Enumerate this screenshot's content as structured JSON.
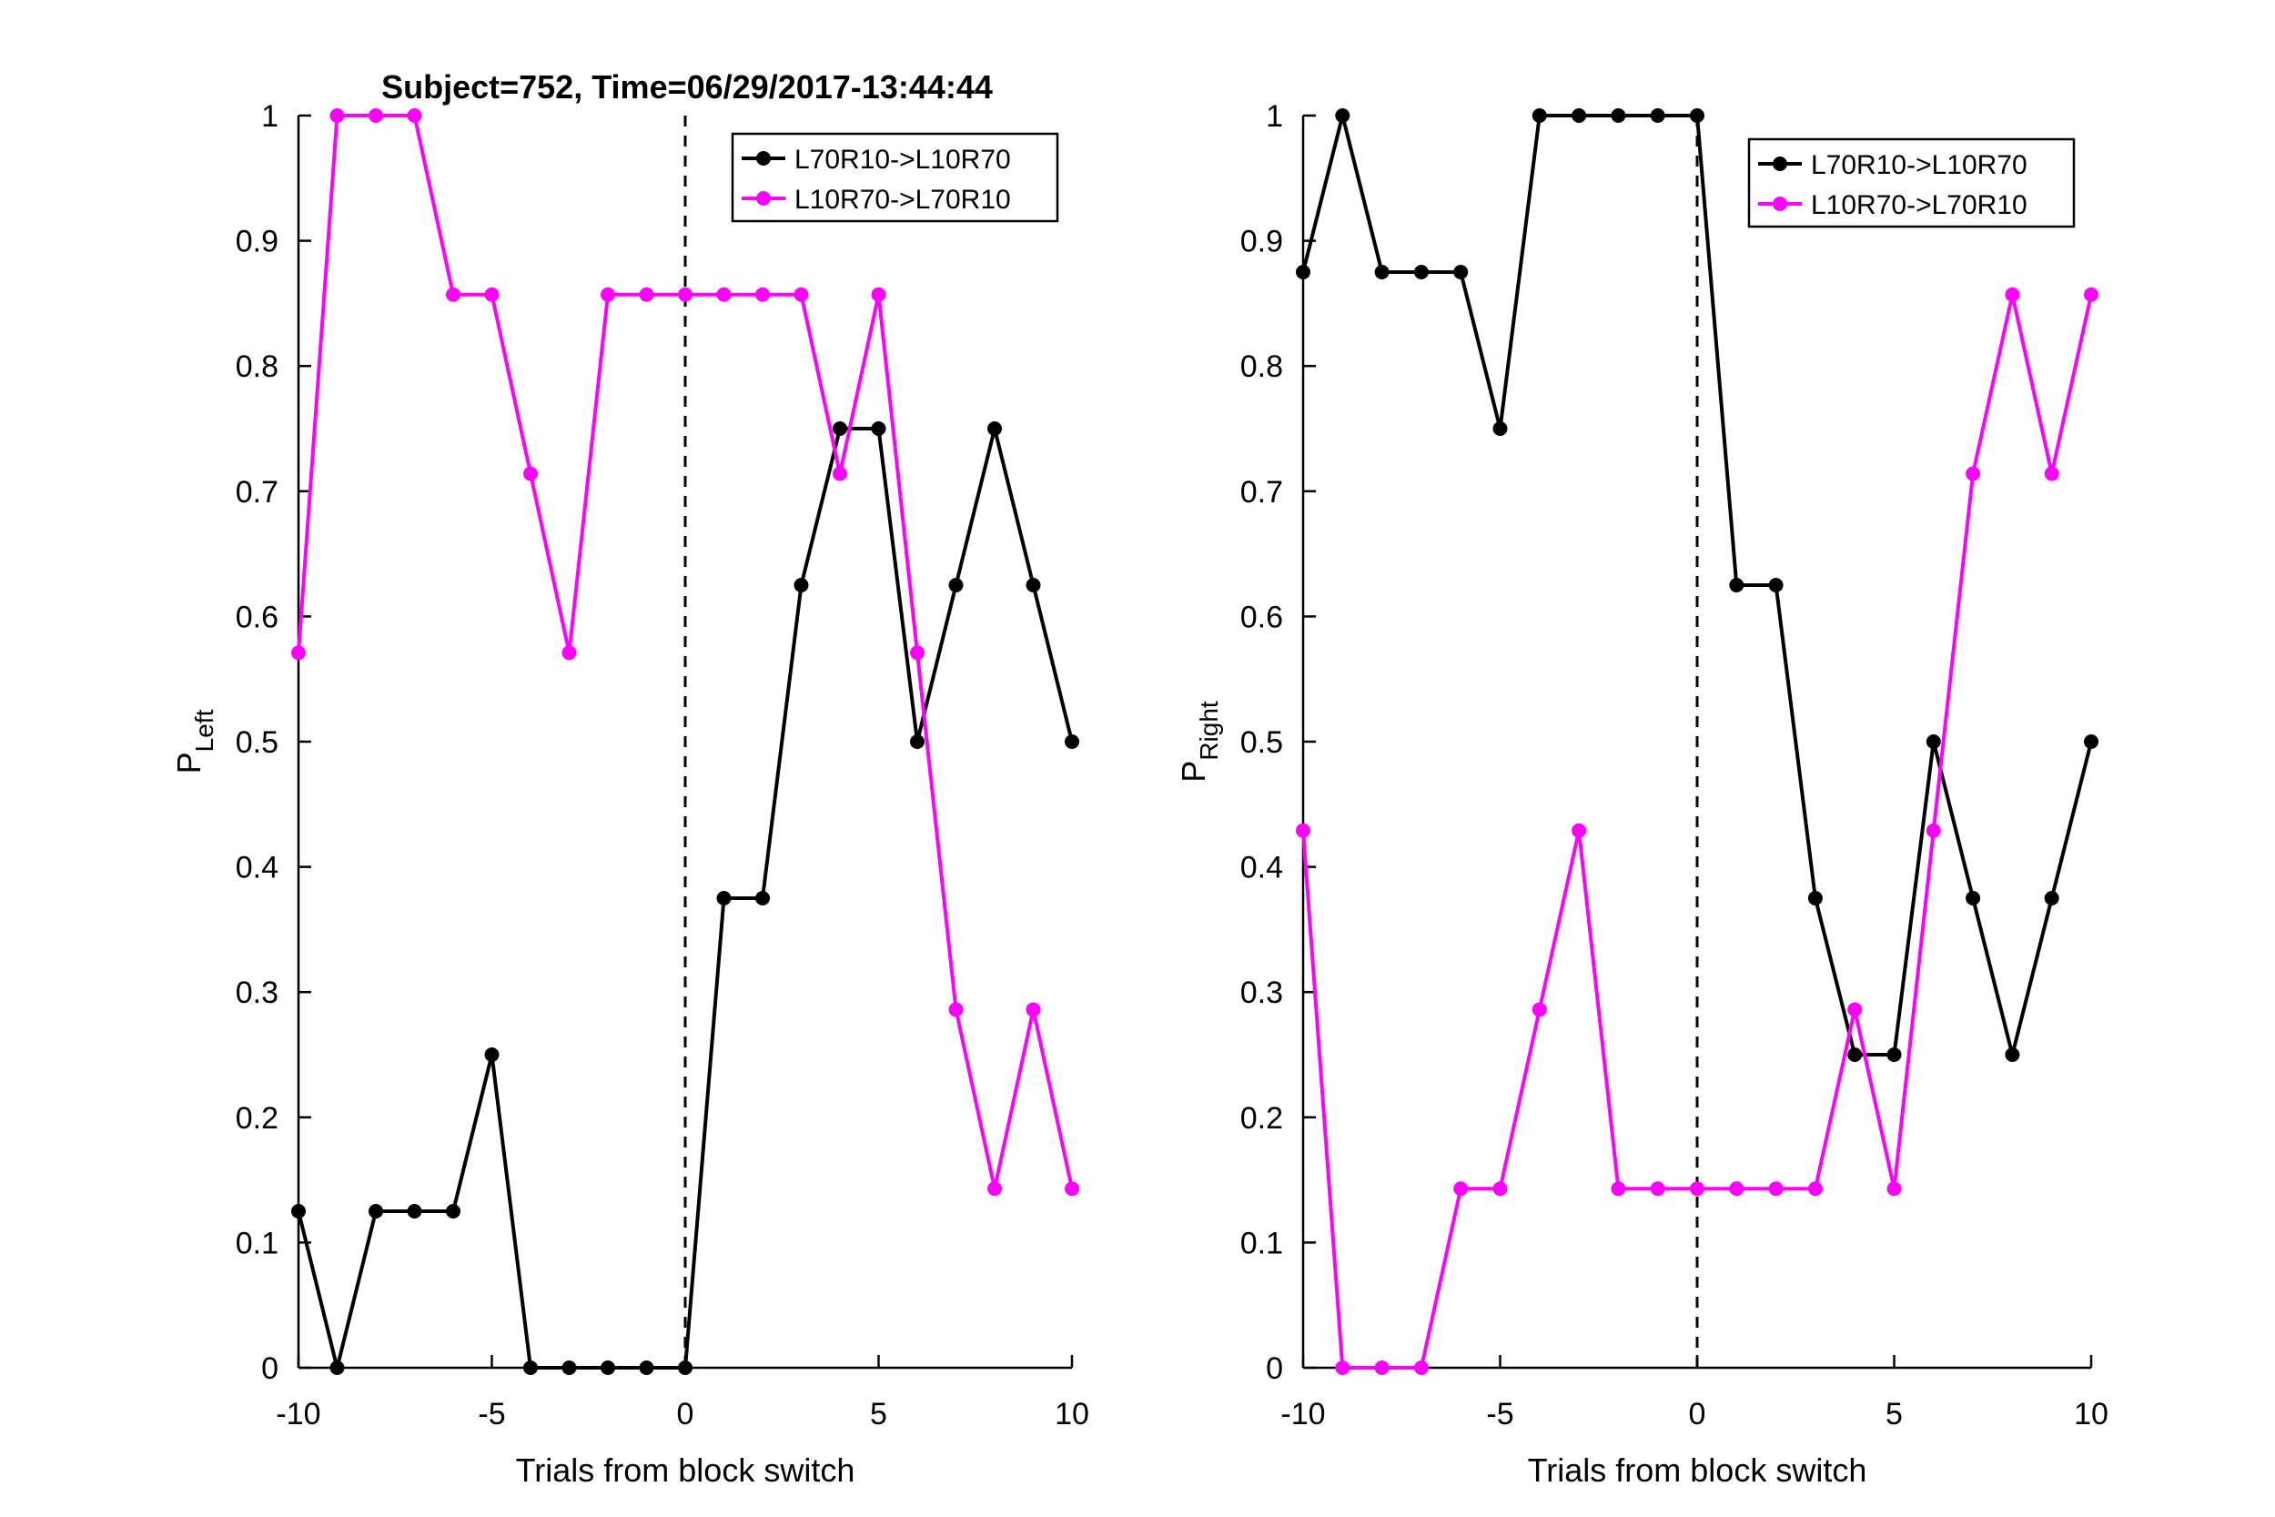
{
  "chart_data": [
    {
      "type": "line",
      "title": "Subject=752, Time=06/29/2017-13:44:44",
      "xlabel": "Trials from block switch",
      "ylabel_main": "P",
      "ylabel_sub": "Left",
      "xlim": [
        -10,
        10
      ],
      "ylim": [
        0,
        1
      ],
      "xticks": [
        -10,
        -5,
        0,
        5,
        10
      ],
      "xtick_labels": [
        "-10",
        "-5",
        "0",
        "5",
        "10"
      ],
      "yticks": [
        0,
        0.1,
        0.2,
        0.3,
        0.4,
        0.5,
        0.6,
        0.7,
        0.8,
        0.9,
        1
      ],
      "ytick_labels": [
        "0",
        "0.1",
        "0.2",
        "0.3",
        "0.4",
        "0.5",
        "0.6",
        "0.7",
        "0.8",
        "0.9",
        "1"
      ],
      "vline_x": 0,
      "grid": false,
      "legend_position": "top-right",
      "x": [
        -10,
        -9,
        -8,
        -7,
        -6,
        -5,
        -4,
        -3,
        -2,
        -1,
        0,
        1,
        2,
        3,
        4,
        5,
        6,
        7,
        8,
        9,
        10
      ],
      "series": [
        {
          "name": "L70R10->L10R70",
          "color": "#000000",
          "values": [
            0.125,
            0,
            0.125,
            0.125,
            0.125,
            0.25,
            0,
            0,
            0,
            0,
            0,
            0.375,
            0.375,
            0.625,
            0.75,
            0.75,
            0.5,
            0.625,
            0.75,
            0.625,
            0.5
          ]
        },
        {
          "name": "L10R70->L70R10",
          "color": "#ff00ff",
          "values": [
            0.571,
            1,
            1,
            1,
            0.857,
            0.857,
            0.714,
            0.571,
            0.857,
            0.857,
            0.857,
            0.857,
            0.857,
            0.857,
            0.714,
            0.857,
            0.571,
            0.286,
            0.143,
            0.286,
            0.143
          ]
        }
      ]
    },
    {
      "type": "line",
      "title": "",
      "xlabel": "Trials from block switch",
      "ylabel_main": "P",
      "ylabel_sub": "Right",
      "xlim": [
        -10,
        10
      ],
      "ylim": [
        0,
        1
      ],
      "xticks": [
        -10,
        -5,
        0,
        5,
        10
      ],
      "xtick_labels": [
        "-10",
        "-5",
        "0",
        "5",
        "10"
      ],
      "yticks": [
        0,
        0.1,
        0.2,
        0.3,
        0.4,
        0.5,
        0.6,
        0.7,
        0.8,
        0.9,
        1
      ],
      "ytick_labels": [
        "0",
        "0.1",
        "0.2",
        "0.3",
        "0.4",
        "0.5",
        "0.6",
        "0.7",
        "0.8",
        "0.9",
        "1"
      ],
      "vline_x": 0,
      "grid": false,
      "legend_position": "top-right",
      "x": [
        -10,
        -9,
        -8,
        -7,
        -6,
        -5,
        -4,
        -3,
        -2,
        -1,
        0,
        1,
        2,
        3,
        4,
        5,
        6,
        7,
        8,
        9,
        10
      ],
      "series": [
        {
          "name": "L70R10->L10R70",
          "color": "#000000",
          "values": [
            0.875,
            1,
            0.875,
            0.875,
            0.875,
            0.75,
            1,
            1,
            1,
            1,
            1,
            0.625,
            0.625,
            0.375,
            0.25,
            0.25,
            0.5,
            0.375,
            0.25,
            0.375,
            0.5
          ]
        },
        {
          "name": "L10R70->L70R10",
          "color": "#ff00ff",
          "values": [
            0.429,
            0,
            0,
            0,
            0.143,
            0.143,
            0.286,
            0.429,
            0.143,
            0.143,
            0.143,
            0.143,
            0.143,
            0.143,
            0.286,
            0.143,
            0.429,
            0.714,
            0.857,
            0.714,
            0.857
          ]
        }
      ]
    }
  ]
}
